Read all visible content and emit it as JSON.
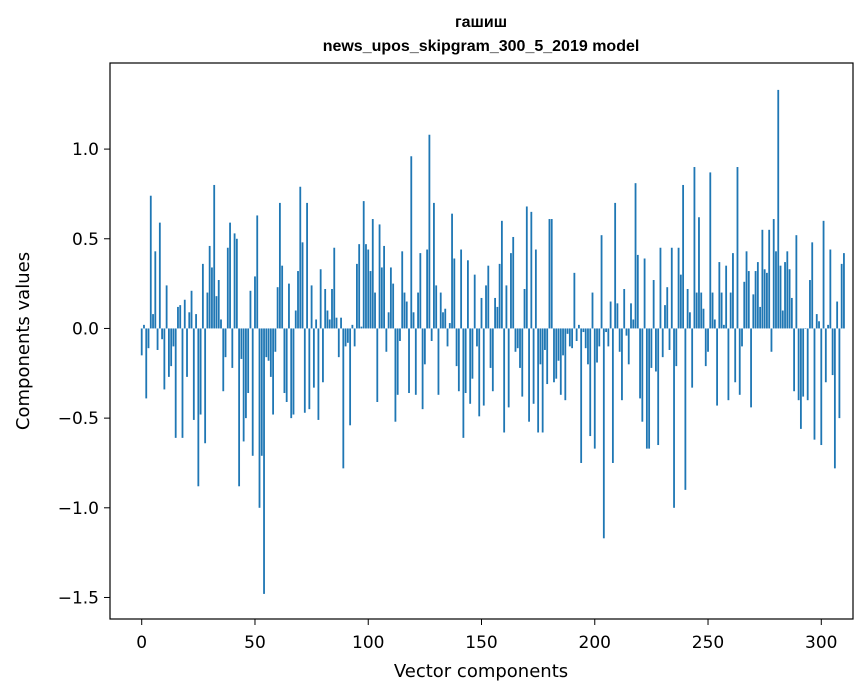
{
  "chart_data": {
    "type": "bar",
    "title": "гашиш",
    "subtitle": "news_upos_skipgram_300_5_2019 model",
    "xlabel": "Vector components",
    "ylabel": "Components values",
    "xlim": [
      -14,
      314
    ],
    "ylim": [
      -1.62,
      1.48
    ],
    "xticks": [
      0,
      50,
      100,
      150,
      200,
      250,
      300
    ],
    "yticks": [
      -1.5,
      -1.0,
      -0.5,
      0.0,
      0.5,
      1.0
    ],
    "ytick_labels": [
      "−1.5",
      "−1.0",
      "−0.5",
      "0.0",
      "0.5",
      "1.0"
    ],
    "grid": false,
    "bar_color": "#1f77b4",
    "x_start": 0,
    "values": [
      -0.15,
      0.02,
      -0.39,
      -0.11,
      0.74,
      0.08,
      0.43,
      -0.12,
      0.59,
      -0.06,
      -0.34,
      0.24,
      -0.27,
      -0.21,
      -0.1,
      -0.61,
      0.12,
      0.13,
      -0.61,
      0.16,
      -0.27,
      0.09,
      0.21,
      -0.51,
      0.08,
      -0.88,
      -0.48,
      0.36,
      -0.64,
      0.2,
      0.46,
      0.34,
      0.8,
      0.18,
      0.27,
      0.05,
      -0.35,
      -0.16,
      0.45,
      0.59,
      -0.22,
      0.53,
      0.5,
      -0.88,
      -0.17,
      -0.63,
      -0.5,
      -0.36,
      0.21,
      -0.71,
      0.29,
      0.63,
      -1.0,
      -0.71,
      -1.48,
      -0.16,
      -0.18,
      -0.27,
      -0.48,
      -0.13,
      0.23,
      0.7,
      0.35,
      -0.36,
      -0.41,
      0.25,
      -0.5,
      -0.48,
      0.1,
      0.32,
      0.79,
      0.48,
      -0.47,
      0.7,
      -0.45,
      0.24,
      -0.33,
      0.05,
      -0.51,
      0.33,
      -0.3,
      0.22,
      0.1,
      0.05,
      0.22,
      0.45,
      0.06,
      -0.16,
      0.06,
      -0.78,
      -0.1,
      -0.08,
      -0.54,
      0.02,
      -0.1,
      0.36,
      0.47,
      0.01,
      0.71,
      0.47,
      0.44,
      0.32,
      0.61,
      0.2,
      -0.41,
      0.58,
      0.34,
      0.46,
      -0.13,
      0.09,
      0.34,
      0.25,
      -0.52,
      -0.37,
      -0.07,
      0.43,
      0.2,
      0.15,
      -0.36,
      0.96,
      0.09,
      -0.37,
      0.2,
      0.42,
      -0.45,
      -0.2,
      0.44,
      1.08,
      -0.07,
      0.7,
      0.24,
      -0.37,
      0.2,
      0.09,
      0.11,
      -0.1,
      0.03,
      0.64,
      0.39,
      -0.21,
      -0.35,
      0.44,
      -0.61,
      -0.36,
      0.38,
      -0.42,
      -0.28,
      0.3,
      -0.1,
      -0.49,
      0.17,
      -0.43,
      0.24,
      0.35,
      -0.22,
      -0.35,
      0.17,
      0.12,
      0.36,
      0.6,
      -0.58,
      0.24,
      -0.44,
      0.42,
      0.51,
      -0.13,
      -0.11,
      -0.22,
      -0.38,
      0.22,
      0.68,
      -0.52,
      0.65,
      -0.42,
      0.44,
      -0.58,
      -0.2,
      -0.58,
      -0.12,
      -0.31,
      0.61,
      0.61,
      -0.3,
      -0.28,
      -0.18,
      -0.37,
      -0.15,
      -0.4,
      -0.03,
      -0.1,
      -0.11,
      0.31,
      -0.07,
      0.02,
      -0.75,
      -0.02,
      -0.11,
      -0.2,
      -0.6,
      0.2,
      -0.67,
      -0.19,
      -0.1,
      0.52,
      -1.17,
      -0.02,
      -0.1,
      0.15,
      -0.75,
      0.7,
      0.14,
      -0.13,
      -0.4,
      0.22,
      -0.04,
      -0.2,
      0.14,
      0.05,
      0.81,
      0.41,
      -0.39,
      -0.52,
      0.39,
      -0.67,
      -0.67,
      -0.22,
      0.27,
      -0.24,
      -0.65,
      0.45,
      -0.16,
      0.13,
      0.23,
      -0.12,
      0.45,
      -1.0,
      -0.21,
      0.45,
      0.3,
      0.8,
      -0.9,
      0.22,
      0.09,
      -0.33,
      0.9,
      0.2,
      0.62,
      0.2,
      0.11,
      -0.21,
      -0.13,
      0.87,
      0.2,
      0.05,
      -0.43,
      0.37,
      0.2,
      0.02,
      0.35,
      -0.4,
      0.2,
      0.42,
      -0.3,
      0.9,
      -0.37,
      -0.1,
      0.26,
      0.43,
      0.32,
      -0.44,
      0.19,
      0.32,
      0.37,
      0.12,
      0.55,
      0.33,
      0.31,
      0.55,
      -0.13,
      0.61,
      0.43,
      1.33,
      0.35,
      0.1,
      0.37,
      0.43,
      0.33,
      0.17,
      -0.35,
      0.52,
      -0.4,
      -0.56,
      -0.38,
      0.0,
      -0.4,
      0.27,
      0.48,
      -0.62,
      0.08,
      0.04,
      -0.65,
      0.6,
      -0.3,
      0.02,
      0.44,
      -0.26,
      -0.78,
      0.15,
      -0.5,
      0.36,
      0.42
    ]
  }
}
